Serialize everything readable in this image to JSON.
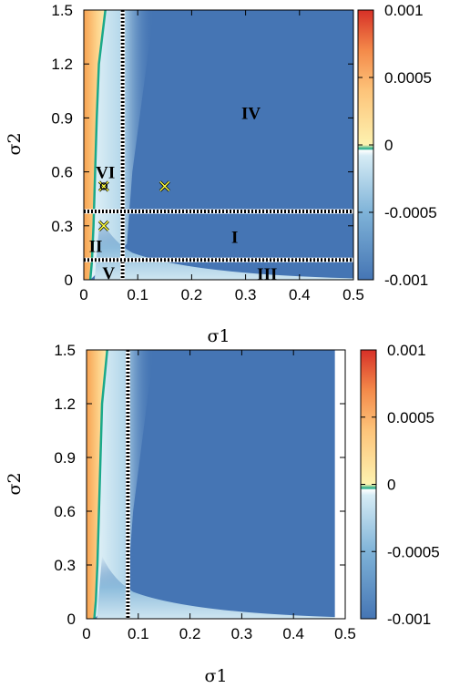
{
  "chart_data": [
    {
      "type": "heatmap",
      "title": "",
      "xlabel": "σ1",
      "ylabel": "σ2",
      "xlim": [
        0,
        0.5
      ],
      "ylim": [
        0,
        1.5
      ],
      "x_ticks": [
        "0",
        "0.1",
        "0.2",
        "0.3",
        "0.4",
        "0.5"
      ],
      "y_ticks": [
        "0",
        "0.3",
        "0.6",
        "0.9",
        "1.2",
        "1.5"
      ],
      "colorbar": {
        "range": [
          -0.001,
          0.001
        ],
        "ticks": [
          "-0.001",
          "-0.0005",
          "0",
          "0.0005",
          "0.001"
        ],
        "colors": {
          "low": "#4575b4",
          "mid_low": "#d6ecf5",
          "zero": "#1aa98a",
          "mid_high": "#fdd28a",
          "high": "#d73027"
        }
      },
      "contour_zero": [
        [
          0.012,
          0.0
        ],
        [
          0.015,
          0.1
        ],
        [
          0.018,
          0.3
        ],
        [
          0.021,
          0.6
        ],
        [
          0.024,
          0.9
        ],
        [
          0.028,
          1.2
        ],
        [
          0.04,
          1.5
        ]
      ],
      "dashed_lines": {
        "vertical_x": [
          0.072
        ],
        "horizontal_y": [
          0.38,
          0.11
        ]
      },
      "regions": [
        {
          "label": "IV",
          "x": 0.31,
          "y": 0.93
        },
        {
          "label": "VI",
          "x": 0.04,
          "y": 0.6
        },
        {
          "label": "I",
          "x": 0.28,
          "y": 0.24
        },
        {
          "label": "II",
          "x": 0.022,
          "y": 0.19
        },
        {
          "label": "V",
          "x": 0.046,
          "y": 0.04
        },
        {
          "label": "III",
          "x": 0.34,
          "y": 0.035
        }
      ],
      "markers": [
        {
          "x": 0.037,
          "y": 0.52,
          "style": "circle-x"
        },
        {
          "x": 0.037,
          "y": 0.3,
          "style": "x"
        },
        {
          "x": 0.15,
          "y": 0.52,
          "style": "x"
        }
      ]
    },
    {
      "type": "heatmap",
      "title": "",
      "xlabel": "σ1",
      "ylabel": "σ2",
      "xlim": [
        0,
        0.5
      ],
      "ylim": [
        0,
        1.5
      ],
      "x_ticks": [
        "0",
        "0.1",
        "0.2",
        "0.3",
        "0.4",
        "0.5"
      ],
      "y_ticks": [
        "0",
        "0.3",
        "0.6",
        "0.9",
        "1.2",
        "1.5"
      ],
      "colorbar": {
        "range": [
          -0.001,
          0.001
        ],
        "ticks": [
          "-0.001",
          "-0.0005",
          "0",
          "0.0005",
          "0.001"
        ],
        "colors": {
          "low": "#4575b4",
          "mid_low": "#d6ecf5",
          "zero": "#1aa98a",
          "mid_high": "#fdd28a",
          "high": "#d73027"
        }
      },
      "contour_zero": [
        [
          0.015,
          0.0
        ],
        [
          0.018,
          0.1
        ],
        [
          0.021,
          0.3
        ],
        [
          0.024,
          0.6
        ],
        [
          0.027,
          0.9
        ],
        [
          0.03,
          1.2
        ],
        [
          0.04,
          1.5
        ]
      ],
      "dashed_lines": {
        "vertical_x": [
          0.08
        ],
        "horizontal_y": []
      },
      "regions": [],
      "markers": []
    }
  ]
}
